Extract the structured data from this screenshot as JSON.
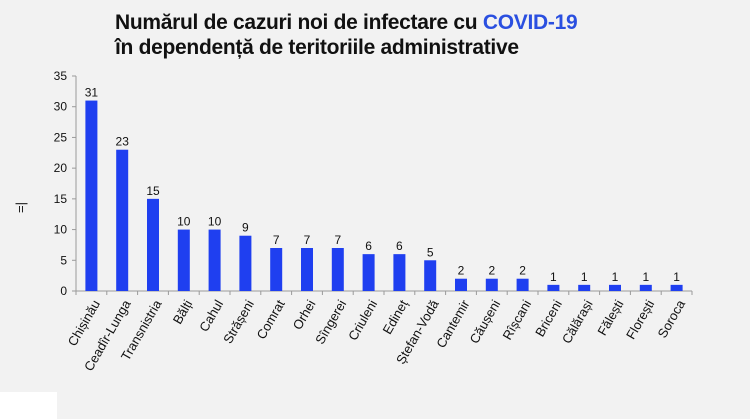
{
  "title": {
    "prefix": "Numărul de cazuri noi de infectare cu ",
    "highlight": "COVID-19",
    "line2": "în dependență de teritoriile administrative"
  },
  "y_mark": "=|",
  "colors": {
    "bar": "#1f3ff0",
    "highlight": "#2a4fe0",
    "axis": "#9a9a9a"
  },
  "chart_data": {
    "type": "bar",
    "title": "Numărul de cazuri noi de infectare cu COVID-19 în dependență de teritoriile administrative",
    "xlabel": "",
    "ylabel": "",
    "ylim": [
      0,
      35
    ],
    "yticks": [
      0,
      5,
      10,
      15,
      20,
      25,
      30,
      35
    ],
    "grid": false,
    "data_labels": true,
    "categories": [
      "Chișinău",
      "Ceadîr-Lunga",
      "Transnistria",
      "Bălți",
      "Cahul",
      "Strășeni",
      "Comrat",
      "Orhei",
      "Sîngerei",
      "Criuleni",
      "Edineț",
      "Ștefan-Vodă",
      "Cantemir",
      "Căușeni",
      "Rîșcani",
      "Briceni",
      "Călărași",
      "Fălești",
      "Florești",
      "Soroca"
    ],
    "values": [
      31,
      23,
      15,
      10,
      10,
      9,
      7,
      7,
      7,
      6,
      6,
      5,
      2,
      2,
      2,
      1,
      1,
      1,
      1,
      1
    ]
  }
}
